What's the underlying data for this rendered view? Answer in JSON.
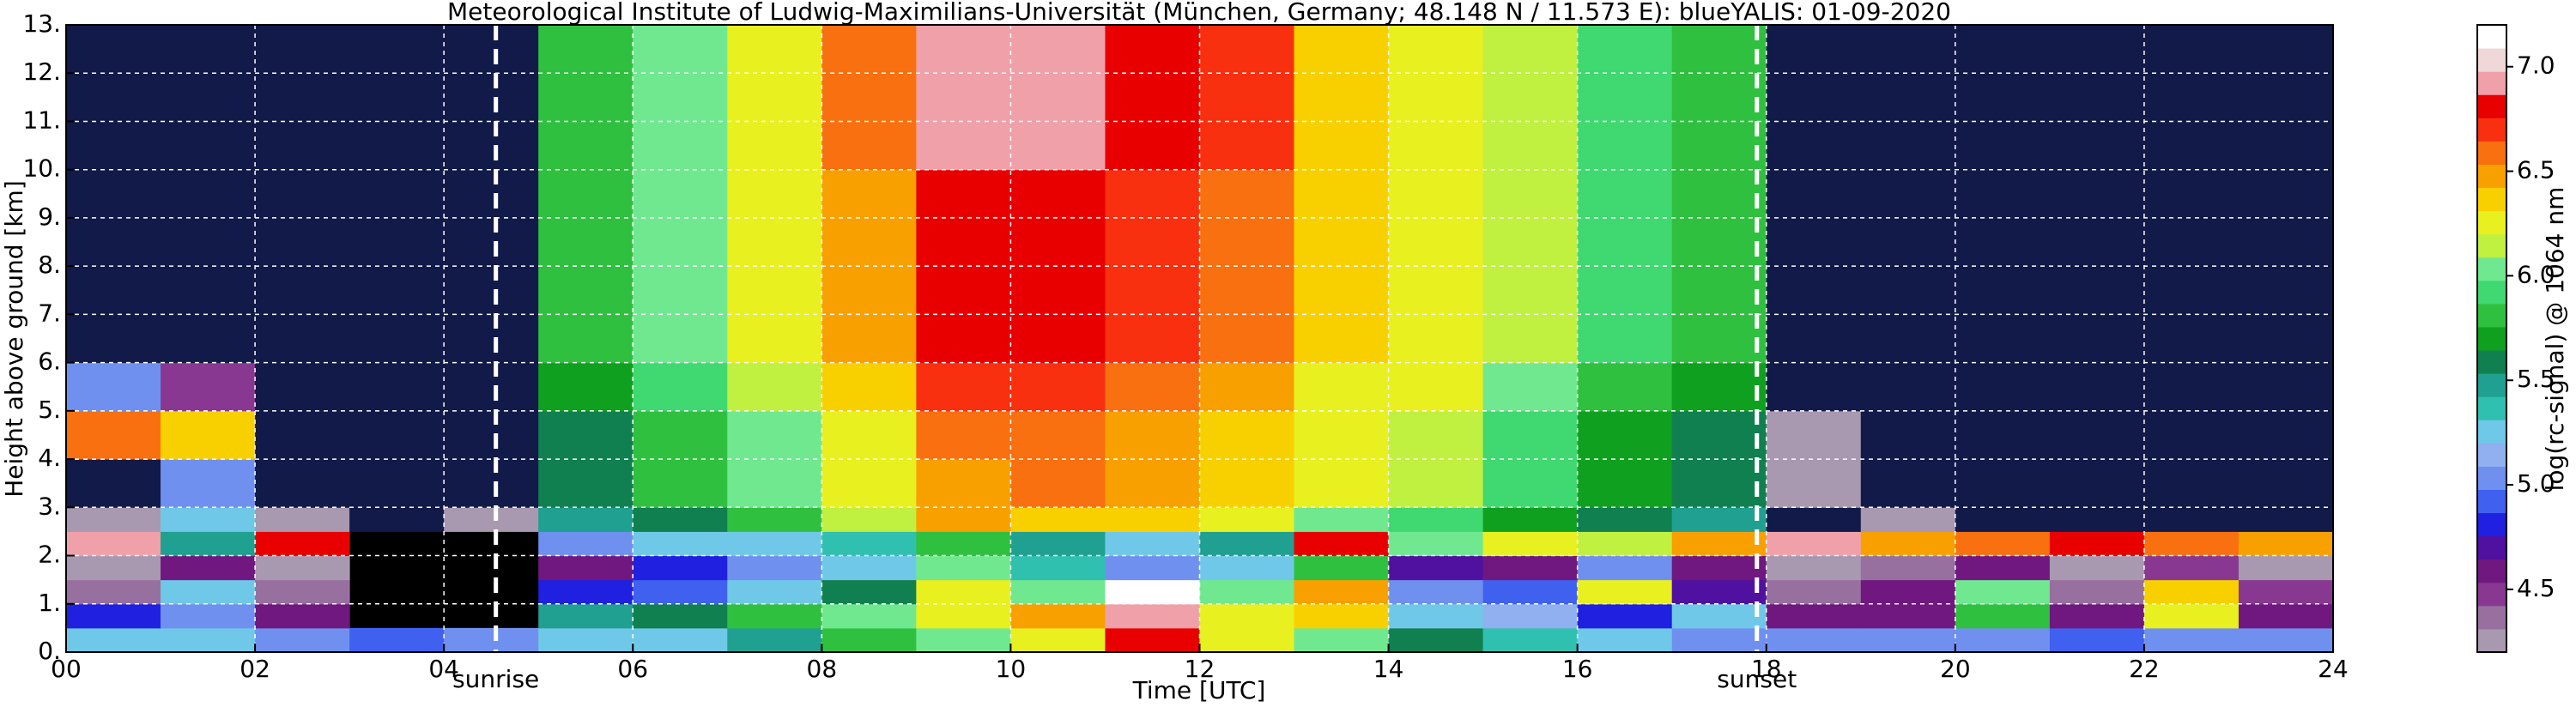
{
  "chart_data": {
    "type": "heatmap",
    "title": "Meteorological Institute of Ludwig-Maximilians-Universität (München, Germany; 48.148 N / 11.573 E):    blueYALIS: 01-09-2020",
    "x_label": "Time [UTC]",
    "y_label": "Height above ground [km]",
    "colorbar_label": "log(rc-signal) @ 1064 nm",
    "x_edges": [
      0,
      1,
      2,
      3,
      4,
      5,
      6,
      7,
      8,
      9,
      10,
      11,
      12,
      13,
      14,
      15,
      16,
      17,
      18,
      19,
      20,
      21,
      22,
      23,
      24
    ],
    "y_edges": [
      0,
      0.5,
      1,
      1.5,
      2,
      2.5,
      3,
      4,
      5,
      6,
      7,
      8,
      9,
      10,
      11,
      12,
      13
    ],
    "z": [
      [
        5.2,
        5.3,
        5.0,
        4.9,
        5.0,
        5.2,
        5.3,
        5.5,
        5.8,
        6.0,
        6.3,
        6.8,
        6.2,
        6.0,
        5.6,
        5.4,
        5.2,
        5.0,
        5.0,
        5.0,
        5.0,
        4.9,
        5.0,
        5.0
      ],
      [
        4.8,
        5.0,
        4.6,
        null,
        null,
        5.5,
        5.6,
        5.8,
        6.0,
        6.3,
        6.5,
        6.9,
        6.2,
        6.4,
        5.2,
        5.1,
        4.8,
        5.3,
        4.6,
        4.6,
        5.8,
        4.6,
        6.2,
        4.6
      ],
      [
        4.4,
        5.2,
        4.4,
        null,
        null,
        4.8,
        4.9,
        5.3,
        5.6,
        6.2,
        6.0,
        7.1,
        6.0,
        6.5,
        5.0,
        4.9,
        6.3,
        4.7,
        4.4,
        4.6,
        6.0,
        4.4,
        6.4,
        4.5
      ],
      [
        4.3,
        4.6,
        4.3,
        null,
        null,
        4.6,
        4.8,
        5.0,
        5.3,
        6.0,
        5.4,
        5.0,
        5.2,
        5.8,
        4.7,
        4.6,
        5.0,
        4.6,
        4.3,
        4.4,
        4.6,
        4.3,
        4.5,
        4.3
      ],
      [
        6.9,
        5.5,
        6.8,
        null,
        null,
        5.0,
        5.2,
        5.3,
        5.4,
        5.8,
        5.5,
        5.3,
        5.5,
        6.8,
        6.0,
        6.2,
        6.1,
        6.5,
        6.9,
        6.5,
        6.6,
        6.8,
        6.6,
        6.5
      ],
      [
        4.3,
        5.2,
        4.2,
        4.0,
        4.2,
        5.5,
        5.6,
        5.8,
        6.1,
        6.5,
        6.4,
        6.4,
        6.2,
        6.0,
        5.9,
        5.7,
        5.6,
        5.5,
        4.1,
        4.2,
        4.1,
        4.1,
        4.1,
        4.1
      ],
      [
        4.1,
        5.0,
        4.0,
        4.0,
        4.1,
        5.6,
        5.8,
        6.0,
        6.3,
        6.5,
        6.6,
        6.5,
        6.4,
        6.2,
        6.1,
        5.9,
        5.7,
        5.6,
        4.3,
        4.1,
        4.0,
        4.0,
        4.0,
        4.0
      ],
      [
        6.6,
        6.4,
        4.0,
        4.0,
        4.1,
        5.6,
        5.8,
        6.0,
        6.3,
        6.6,
        6.6,
        6.5,
        6.4,
        6.2,
        6.1,
        5.9,
        5.7,
        5.6,
        4.2,
        4.0,
        4.0,
        4.0,
        4.0,
        4.0
      ],
      [
        5.0,
        4.5,
        4.0,
        4.0,
        4.1,
        5.7,
        5.9,
        6.1,
        6.4,
        6.7,
        6.7,
        6.6,
        6.5,
        6.3,
        6.2,
        6.0,
        5.8,
        5.7,
        4.1,
        4.0,
        4.0,
        4.0,
        4.0,
        4.0
      ],
      [
        4.0,
        4.0,
        4.0,
        4.0,
        4.1,
        5.8,
        6.0,
        6.2,
        6.5,
        6.8,
        6.8,
        6.7,
        6.6,
        6.4,
        6.3,
        6.1,
        5.9,
        5.8,
        4.1,
        4.0,
        4.0,
        4.0,
        4.0,
        4.0
      ],
      [
        4.0,
        4.0,
        4.0,
        4.0,
        4.1,
        5.8,
        6.0,
        6.2,
        6.5,
        6.8,
        6.8,
        6.7,
        6.6,
        6.4,
        6.3,
        6.1,
        5.9,
        5.8,
        4.1,
        4.0,
        4.0,
        4.0,
        4.0,
        4.0
      ],
      [
        4.0,
        4.0,
        4.0,
        4.0,
        4.1,
        5.8,
        6.0,
        6.2,
        6.5,
        6.8,
        6.8,
        6.7,
        6.6,
        6.4,
        6.3,
        6.1,
        5.9,
        5.8,
        4.1,
        4.0,
        4.0,
        4.0,
        4.0,
        4.0
      ],
      [
        4.0,
        4.0,
        4.0,
        4.0,
        4.1,
        5.8,
        6.0,
        6.2,
        6.5,
        6.8,
        6.8,
        6.7,
        6.6,
        6.4,
        6.3,
        6.1,
        5.9,
        5.8,
        4.1,
        4.0,
        4.0,
        4.0,
        4.0,
        4.0
      ],
      [
        4.0,
        4.0,
        4.0,
        4.0,
        4.1,
        5.8,
        6.0,
        6.2,
        6.6,
        6.9,
        6.9,
        6.8,
        6.7,
        6.4,
        6.3,
        6.1,
        5.9,
        5.8,
        4.1,
        4.0,
        4.0,
        4.0,
        4.0,
        4.0
      ],
      [
        4.0,
        4.0,
        4.0,
        4.0,
        4.1,
        5.8,
        6.0,
        6.2,
        6.6,
        6.9,
        6.9,
        6.8,
        6.7,
        6.4,
        6.3,
        6.1,
        5.9,
        5.8,
        4.1,
        4.0,
        4.0,
        4.0,
        4.0,
        4.0
      ],
      [
        4.0,
        4.0,
        4.0,
        4.0,
        4.1,
        5.8,
        6.0,
        6.2,
        6.6,
        6.9,
        6.9,
        6.8,
        6.7,
        6.4,
        6.3,
        6.1,
        5.9,
        5.8,
        4.1,
        4.0,
        4.0,
        4.0,
        4.0,
        4.0
      ]
    ],
    "xlim": [
      0,
      24
    ],
    "ylim": [
      0,
      13
    ],
    "clim": [
      4.2,
      7.2
    ],
    "xticks": [
      {
        "value": 0,
        "label": "00"
      },
      {
        "value": 2,
        "label": "02"
      },
      {
        "value": 4,
        "label": "04"
      },
      {
        "value": 6,
        "label": "06"
      },
      {
        "value": 8,
        "label": "08"
      },
      {
        "value": 10,
        "label": "10"
      },
      {
        "value": 12,
        "label": "12"
      },
      {
        "value": 14,
        "label": "14"
      },
      {
        "value": 16,
        "label": "16"
      },
      {
        "value": 18,
        "label": "18"
      },
      {
        "value": 20,
        "label": "20"
      },
      {
        "value": 22,
        "label": "22"
      },
      {
        "value": 24,
        "label": "24"
      }
    ],
    "yticks": [
      {
        "value": 0,
        "label": "0."
      },
      {
        "value": 1,
        "label": "1."
      },
      {
        "value": 2,
        "label": "2."
      },
      {
        "value": 3,
        "label": "3."
      },
      {
        "value": 4,
        "label": "4."
      },
      {
        "value": 5,
        "label": "5."
      },
      {
        "value": 6,
        "label": "6."
      },
      {
        "value": 7,
        "label": "7."
      },
      {
        "value": 8,
        "label": "8."
      },
      {
        "value": 9,
        "label": "9."
      },
      {
        "value": 10,
        "label": "10."
      },
      {
        "value": 11,
        "label": "11."
      },
      {
        "value": 12,
        "label": "12."
      },
      {
        "value": 13,
        "label": "13."
      }
    ],
    "cticks": [
      {
        "value": 4.5,
        "label": "4.5"
      },
      {
        "value": 5.0,
        "label": "5.0"
      },
      {
        "value": 5.5,
        "label": "5.5"
      },
      {
        "value": 6.0,
        "label": "6.0"
      },
      {
        "value": 6.5,
        "label": "6.5"
      },
      {
        "value": 7.0,
        "label": "7.0"
      }
    ],
    "vlines": [
      {
        "x": 4.55,
        "label": "sunrise"
      },
      {
        "x": 17.9,
        "label": "sunset"
      }
    ],
    "grid": true,
    "grid_color": "#ffffff",
    "bad_color": "#000000",
    "under_color": "#121a4a",
    "colorscale": [
      "#a898b0",
      "#9870a0",
      "#883890",
      "#701880",
      "#5010a0",
      "#2020e0",
      "#4060f0",
      "#7090f0",
      "#90b0f0",
      "#70c8e8",
      "#30c0b0",
      "#20a090",
      "#108050",
      "#10a020",
      "#30c040",
      "#40d870",
      "#70e890",
      "#c0f040",
      "#e8f020",
      "#f8d000",
      "#f8a000",
      "#f87010",
      "#f83010",
      "#e80000",
      "#f0a0a8",
      "#f0d8d8",
      "#ffffff"
    ]
  }
}
